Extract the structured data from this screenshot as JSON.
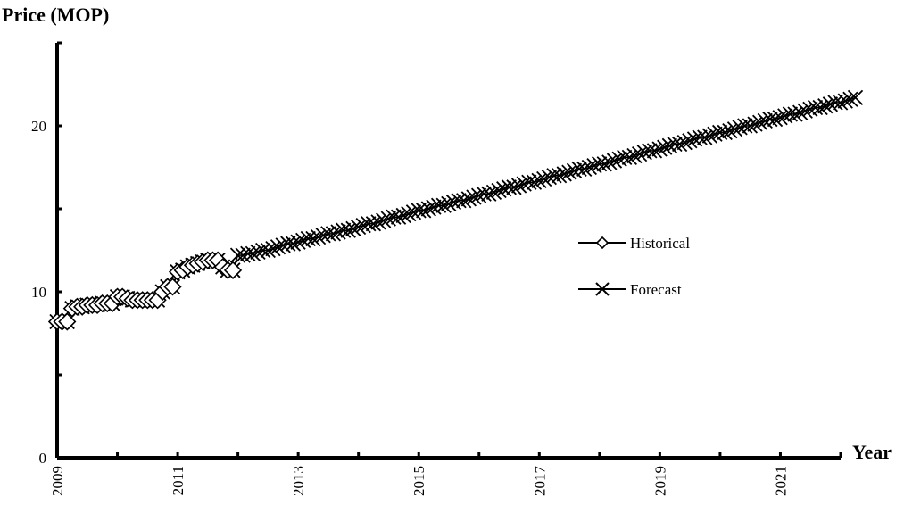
{
  "chart_data": {
    "type": "line",
    "ylabel": "Price (MOP)",
    "xlabel": "Year",
    "xlim": [
      2009,
      2022
    ],
    "ylim": [
      0,
      25
    ],
    "x_ticks": [
      "2009",
      "2011",
      "2013",
      "2015",
      "2017",
      "2019",
      "2021"
    ],
    "y_ticks": [
      "0",
      "10",
      "20"
    ],
    "grid": false,
    "legend_position": "right",
    "series": [
      {
        "name": "Historical",
        "marker": "diamond",
        "x": [
          2009.0,
          2009.083,
          2009.167,
          2009.25,
          2009.333,
          2009.417,
          2009.5,
          2009.583,
          2009.667,
          2009.75,
          2009.833,
          2009.917,
          2010.0,
          2010.083,
          2010.167,
          2010.25,
          2010.333,
          2010.417,
          2010.5,
          2010.583,
          2010.667,
          2010.75,
          2010.833,
          2010.917,
          2011.0,
          2011.083,
          2011.167,
          2011.25,
          2011.333,
          2011.417,
          2011.5,
          2011.583,
          2011.667,
          2011.75,
          2011.833,
          2011.917
        ],
        "y": [
          8.2,
          8.2,
          8.2,
          9.0,
          9.1,
          9.1,
          9.2,
          9.2,
          9.2,
          9.3,
          9.3,
          9.3,
          9.7,
          9.7,
          9.6,
          9.5,
          9.5,
          9.5,
          9.5,
          9.5,
          9.5,
          10.0,
          10.3,
          10.3,
          11.2,
          11.3,
          11.5,
          11.6,
          11.7,
          11.8,
          11.9,
          11.9,
          11.9,
          11.5,
          11.3,
          11.3
        ]
      },
      {
        "name": "Forecast",
        "marker": "x",
        "x_start": 2009.0,
        "x_step": 0.0833,
        "y": [
          8.2,
          8.2,
          8.2,
          9.0,
          9.1,
          9.1,
          9.2,
          9.2,
          9.2,
          9.3,
          9.3,
          9.3,
          9.7,
          9.7,
          9.6,
          9.5,
          9.5,
          9.5,
          9.5,
          9.5,
          9.5,
          10.0,
          10.3,
          10.3,
          11.2,
          11.3,
          11.5,
          11.6,
          11.7,
          11.8,
          11.9,
          11.9,
          11.9,
          11.5,
          11.3,
          11.3,
          12.2,
          12.2,
          12.3,
          12.3,
          12.4,
          12.5,
          12.5,
          12.6,
          12.7,
          12.8,
          12.9,
          12.9,
          13.0,
          13.1,
          13.2,
          13.2,
          13.3,
          13.4,
          13.5,
          13.5,
          13.6,
          13.7,
          13.7,
          13.8,
          13.9,
          14.0,
          14.1,
          14.1,
          14.2,
          14.3,
          14.4,
          14.5,
          14.5,
          14.6,
          14.7,
          14.8,
          14.9,
          14.9,
          15.0,
          15.1,
          15.2,
          15.2,
          15.3,
          15.4,
          15.5,
          15.5,
          15.6,
          15.7,
          15.8,
          15.9,
          15.9,
          16.0,
          16.1,
          16.2,
          16.3,
          16.3,
          16.4,
          16.5,
          16.6,
          16.6,
          16.7,
          16.8,
          16.9,
          17.0,
          17.0,
          17.1,
          17.2,
          17.3,
          17.4,
          17.4,
          17.5,
          17.6,
          17.7,
          17.7,
          17.8,
          17.9,
          18.0,
          18.1,
          18.1,
          18.2,
          18.3,
          18.4,
          18.5,
          18.5,
          18.6,
          18.7,
          18.8,
          18.9,
          18.9,
          19.0,
          19.1,
          19.2,
          19.3,
          19.3,
          19.4,
          19.5,
          19.6,
          19.6,
          19.7,
          19.8,
          19.9,
          20.0,
          20.0,
          20.1,
          20.2,
          20.3,
          20.4,
          20.4,
          20.5,
          20.6,
          20.7,
          20.7,
          20.8,
          20.9,
          21.0,
          21.1,
          21.1,
          21.2,
          21.3,
          21.4,
          21.4,
          21.5,
          21.6,
          21.7
        ]
      }
    ]
  }
}
